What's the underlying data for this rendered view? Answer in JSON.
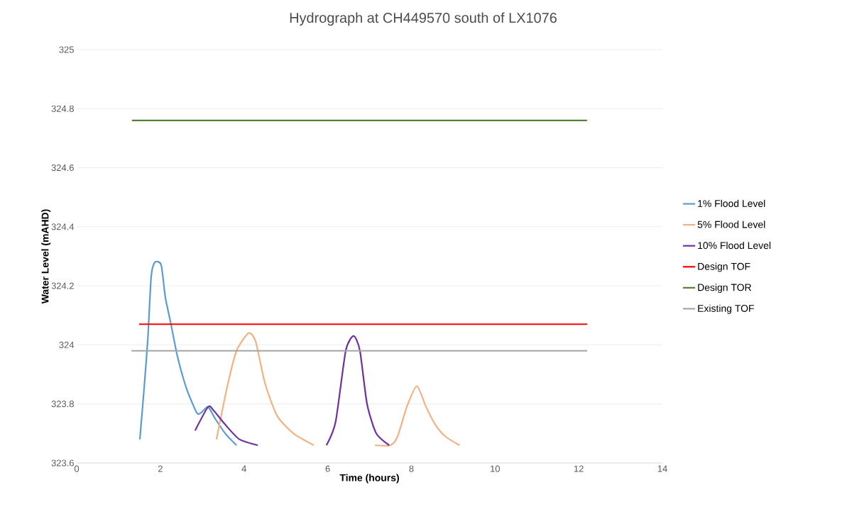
{
  "chart_data": {
    "type": "line",
    "title": "Hydrograph at CH449570 south of LX1076",
    "xlabel": "Time (hours)",
    "ylabel": "Water Level (mAHD)",
    "xlim": [
      0,
      14
    ],
    "xticks": [
      0,
      2,
      4,
      6,
      8,
      10,
      12,
      14
    ],
    "ylim": [
      323.6,
      325
    ],
    "yticks": [
      323.6,
      323.8,
      324,
      324.2,
      324.4,
      324.6,
      324.8,
      325
    ],
    "grid": "y",
    "legend": "right",
    "marker": "none",
    "line_style": "solid",
    "series": [
      {
        "name": "1% Flood Level",
        "color": "#5b9bd5",
        "x": [
          1.51,
          1.61,
          1.7,
          1.78,
          1.87,
          2.02,
          2.12,
          2.24,
          2.41,
          2.63,
          2.87,
          2.97,
          3.14,
          3.31,
          3.55,
          3.82
        ],
        "values": [
          323.68,
          323.85,
          324.02,
          324.23,
          324.28,
          324.27,
          324.16,
          324.08,
          323.96,
          323.85,
          323.77,
          323.77,
          323.79,
          323.75,
          323.7,
          323.66
        ]
      },
      {
        "name": "5% Flood Level",
        "color": "#f4b183",
        "x": [
          3.34,
          3.6,
          3.82,
          4.11,
          4.28,
          4.5,
          4.79,
          5.18,
          5.67,
          null,
          7.13,
          7.5,
          7.67,
          7.89,
          8.13,
          8.35,
          8.57,
          8.81,
          9.15
        ],
        "values": [
          323.68,
          323.86,
          323.98,
          324.04,
          324.01,
          323.87,
          323.76,
          323.7,
          323.66,
          null,
          323.66,
          323.66,
          323.69,
          323.79,
          323.86,
          323.79,
          323.73,
          323.69,
          323.66
        ]
      },
      {
        "name": "10% Flood Level",
        "color": "#7030a0",
        "x": [
          2.83,
          3.14,
          3.26,
          3.55,
          3.89,
          4.33,
          null,
          5.97,
          6.19,
          6.43,
          6.62,
          6.77,
          6.94,
          7.16,
          7.47
        ],
        "values": [
          323.71,
          323.79,
          323.78,
          323.73,
          323.68,
          323.66,
          null,
          323.66,
          323.74,
          323.98,
          324.03,
          323.98,
          323.8,
          323.7,
          323.66
        ]
      },
      {
        "name": "Design TOF",
        "color": "#ff0000",
        "x": [
          1.49,
          12.2
        ],
        "values": [
          324.07,
          324.07
        ]
      },
      {
        "name": "Design TOR",
        "color": "#548235",
        "x": [
          1.32,
          12.2
        ],
        "values": [
          324.76,
          324.76
        ]
      },
      {
        "name": "Existing TOF",
        "color": "#a5a5a5",
        "x": [
          1.31,
          12.2
        ],
        "values": [
          323.98,
          323.98
        ]
      }
    ]
  }
}
